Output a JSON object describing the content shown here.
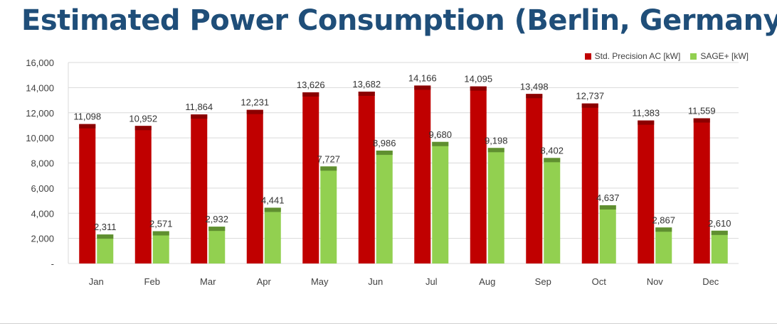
{
  "title": "Estimated Power Consumption (Berlin, Germany)",
  "colors": {
    "title": "#1f4e79",
    "std": "#c00000",
    "std_top": "#8b0000",
    "sage": "#92d050",
    "sage_top": "#5f8f30",
    "grid": "#d9d9d9"
  },
  "chart_data": {
    "type": "bar",
    "categories": [
      "Jan",
      "Feb",
      "Mar",
      "Apr",
      "May",
      "Jun",
      "Jul",
      "Aug",
      "Sep",
      "Oct",
      "Nov",
      "Dec"
    ],
    "series": [
      {
        "name": "Std. Precision AC [kW]",
        "values": [
          11098,
          10952,
          11864,
          12231,
          13626,
          13682,
          14166,
          14095,
          13498,
          12737,
          11383,
          11559
        ]
      },
      {
        "name": "SAGE+ [kW]",
        "values": [
          2311,
          2571,
          2932,
          4441,
          7727,
          8986,
          9680,
          9198,
          8402,
          4637,
          2867,
          2610
        ]
      }
    ],
    "data_labels": [
      [
        "11,098",
        "10,952",
        "11,864",
        "12,231",
        "13,626",
        "13,682",
        "14,166",
        "14,095",
        "13,498",
        "12,737",
        "11,383",
        "11,559"
      ],
      [
        "2,311",
        "2,571",
        "2,932",
        "4,441",
        "7,727",
        "8,986",
        "9,680",
        "9,198",
        "8,402",
        "4,637",
        "2,867",
        "2,610"
      ]
    ],
    "y_ticks": [
      "-",
      "2,000",
      "4,000",
      "6,000",
      "8,000",
      "10,000",
      "12,000",
      "14,000",
      "16,000"
    ],
    "ylim": [
      0,
      16000
    ],
    "grid": true,
    "legend_position": "top-right"
  }
}
